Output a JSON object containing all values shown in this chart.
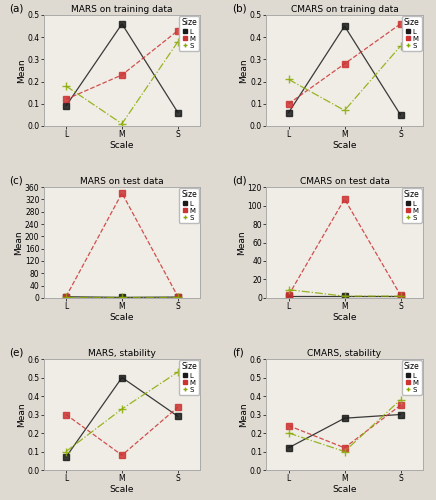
{
  "panels": [
    {
      "label": "(a)",
      "title": "MARS on training data",
      "scales": [
        "L",
        "M",
        "S"
      ],
      "series": [
        {
          "name": "L",
          "color": "#1a1a1a",
          "linestyle": "-",
          "marker": "s",
          "values": [
            0.09,
            0.46,
            0.06
          ]
        },
        {
          "name": "M",
          "color": "#cc3333",
          "linestyle": "--",
          "marker": "s",
          "values": [
            0.12,
            0.23,
            0.43
          ]
        },
        {
          "name": "S",
          "color": "#88aa00",
          "linestyle": "-.",
          "marker": "+",
          "values": [
            0.18,
            0.01,
            0.38
          ]
        }
      ],
      "ylim": [
        0.0,
        0.5
      ],
      "yticks": [
        0.0,
        0.1,
        0.2,
        0.3,
        0.4,
        0.5
      ]
    },
    {
      "label": "(b)",
      "title": "CMARS on training data",
      "scales": [
        "L",
        "M",
        "S"
      ],
      "series": [
        {
          "name": "L",
          "color": "#1a1a1a",
          "linestyle": "-",
          "marker": "s",
          "values": [
            0.06,
            0.45,
            0.05
          ]
        },
        {
          "name": "M",
          "color": "#cc3333",
          "linestyle": "--",
          "marker": "s",
          "values": [
            0.1,
            0.28,
            0.46
          ]
        },
        {
          "name": "S",
          "color": "#88aa00",
          "linestyle": "-.",
          "marker": "+",
          "values": [
            0.21,
            0.07,
            0.36
          ]
        }
      ],
      "ylim": [
        0.0,
        0.5
      ],
      "yticks": [
        0.0,
        0.1,
        0.2,
        0.3,
        0.4,
        0.5
      ]
    },
    {
      "label": "(c)",
      "title": "MARS on test data",
      "scales": [
        "L",
        "M",
        "S"
      ],
      "series": [
        {
          "name": "L",
          "color": "#1a1a1a",
          "linestyle": "-",
          "marker": "s",
          "values": [
            4,
            2,
            3
          ]
        },
        {
          "name": "M",
          "color": "#cc3333",
          "linestyle": "--",
          "marker": "s",
          "values": [
            4,
            340,
            4
          ]
        },
        {
          "name": "S",
          "color": "#88aa00",
          "linestyle": "-.",
          "marker": "+",
          "values": [
            2,
            2,
            2
          ]
        }
      ],
      "ylim": [
        0,
        360
      ],
      "yticks": [
        0,
        40,
        80,
        120,
        160,
        200,
        240,
        280,
        320,
        360
      ]
    },
    {
      "label": "(d)",
      "title": "CMARS on test data",
      "scales": [
        "L",
        "M",
        "S"
      ],
      "series": [
        {
          "name": "L",
          "color": "#1a1a1a",
          "linestyle": "-",
          "marker": "s",
          "values": [
            2,
            2,
            2
          ]
        },
        {
          "name": "M",
          "color": "#cc3333",
          "linestyle": "--",
          "marker": "s",
          "values": [
            3,
            107,
            3
          ]
        },
        {
          "name": "S",
          "color": "#88aa00",
          "linestyle": "-.",
          "marker": "+",
          "values": [
            9,
            2,
            2
          ]
        }
      ],
      "ylim": [
        0,
        120
      ],
      "yticks": [
        0,
        20,
        40,
        60,
        80,
        100,
        120
      ]
    },
    {
      "label": "(e)",
      "title": "MARS, stability",
      "scales": [
        "L",
        "M",
        "S"
      ],
      "series": [
        {
          "name": "L",
          "color": "#1a1a1a",
          "linestyle": "-",
          "marker": "s",
          "values": [
            0.07,
            0.5,
            0.29
          ]
        },
        {
          "name": "M",
          "color": "#cc3333",
          "linestyle": "--",
          "marker": "s",
          "values": [
            0.3,
            0.08,
            0.34
          ]
        },
        {
          "name": "S",
          "color": "#88aa00",
          "linestyle": "-.",
          "marker": "+",
          "values": [
            0.1,
            0.33,
            0.53
          ]
        }
      ],
      "ylim": [
        0.0,
        0.6
      ],
      "yticks": [
        0.0,
        0.1,
        0.2,
        0.3,
        0.4,
        0.5,
        0.6
      ]
    },
    {
      "label": "(f)",
      "title": "CMARS, stability",
      "scales": [
        "L",
        "M",
        "S"
      ],
      "series": [
        {
          "name": "L",
          "color": "#1a1a1a",
          "linestyle": "-",
          "marker": "s",
          "values": [
            0.12,
            0.28,
            0.3
          ]
        },
        {
          "name": "M",
          "color": "#cc3333",
          "linestyle": "--",
          "marker": "s",
          "values": [
            0.24,
            0.12,
            0.35
          ]
        },
        {
          "name": "S",
          "color": "#88aa00",
          "linestyle": "-.",
          "marker": "+",
          "values": [
            0.2,
            0.1,
            0.38
          ]
        }
      ],
      "ylim": [
        0.0,
        0.6
      ],
      "yticks": [
        0.0,
        0.1,
        0.2,
        0.3,
        0.4,
        0.5,
        0.6
      ]
    }
  ],
  "bg_color": "#dedad2",
  "plot_bg_color": "#f0ede6",
  "panel_border_color": "#c8c4bb",
  "legend_labels": [
    "L",
    "M",
    "S"
  ],
  "legend_colors": [
    "#1a1a1a",
    "#cc3333",
    "#88aa00"
  ],
  "legend_markers": [
    "s",
    "s",
    "+"
  ],
  "legend_linestyles": [
    "-",
    "--",
    "-."
  ]
}
